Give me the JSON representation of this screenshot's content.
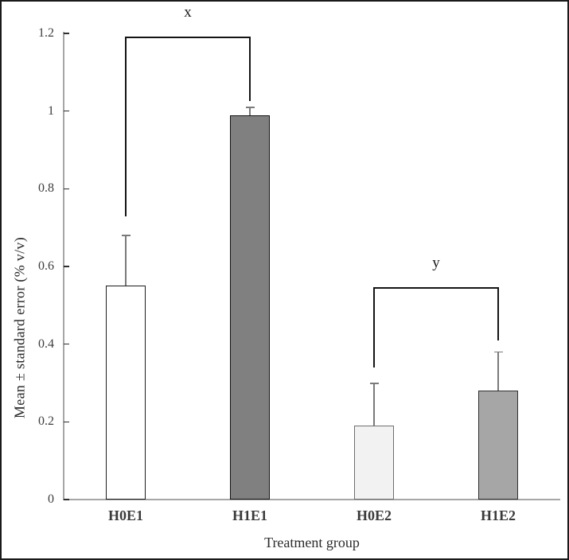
{
  "chart_data": {
    "type": "bar",
    "title": "",
    "xlabel": "Treatment group",
    "ylabel": "Mean ± standard error (% v/v)",
    "ylim": [
      0,
      1.2
    ],
    "grid": false,
    "legend": false,
    "yticks": [
      {
        "value": 0,
        "label": "0"
      },
      {
        "value": 0.2,
        "label": "0.2"
      },
      {
        "value": 0.4,
        "label": "0.4"
      },
      {
        "value": 0.6,
        "label": "0.6"
      },
      {
        "value": 0.8,
        "label": "0.8"
      },
      {
        "value": 1.0,
        "label": "1"
      },
      {
        "value": 1.2,
        "label": "1.2"
      }
    ],
    "categories": [
      "H0E1",
      "H1E1",
      "H0E2",
      "H1E2"
    ],
    "series": [
      {
        "name": "Mean ± standard error",
        "values": [
          0.55,
          0.99,
          0.19,
          0.28
        ],
        "errors": [
          0.13,
          0.02,
          0.11,
          0.1
        ]
      }
    ],
    "bar_styles": [
      {
        "fill": "#ffffff",
        "border": "#1c1c1c"
      },
      {
        "fill": "#808080",
        "border": "#111111"
      },
      {
        "fill": "#f2f2f2",
        "border": "#6e6e6e"
      },
      {
        "fill": "#a6a6a6",
        "border": "#2f2f2f"
      }
    ],
    "significance_brackets": [
      {
        "label": "x",
        "from": "H0E1",
        "to": "H1E1",
        "top": 1.19,
        "left_end": 0.73,
        "right_end": 1.025
      },
      {
        "label": "y",
        "from": "H0E2",
        "to": "H1E2",
        "top": 0.545,
        "left_end": 0.34,
        "right_end": 0.41
      }
    ],
    "colors": {
      "axis": "#a6a6a6",
      "tick_mark": "#2e2e2e",
      "tick_text": "#3d3d3d",
      "label_text": "#2b2b2b",
      "error_bar": "#7a7a7a",
      "bracket": "#141414",
      "frame": "#1a1a1a",
      "background": "#ffffff"
    }
  }
}
